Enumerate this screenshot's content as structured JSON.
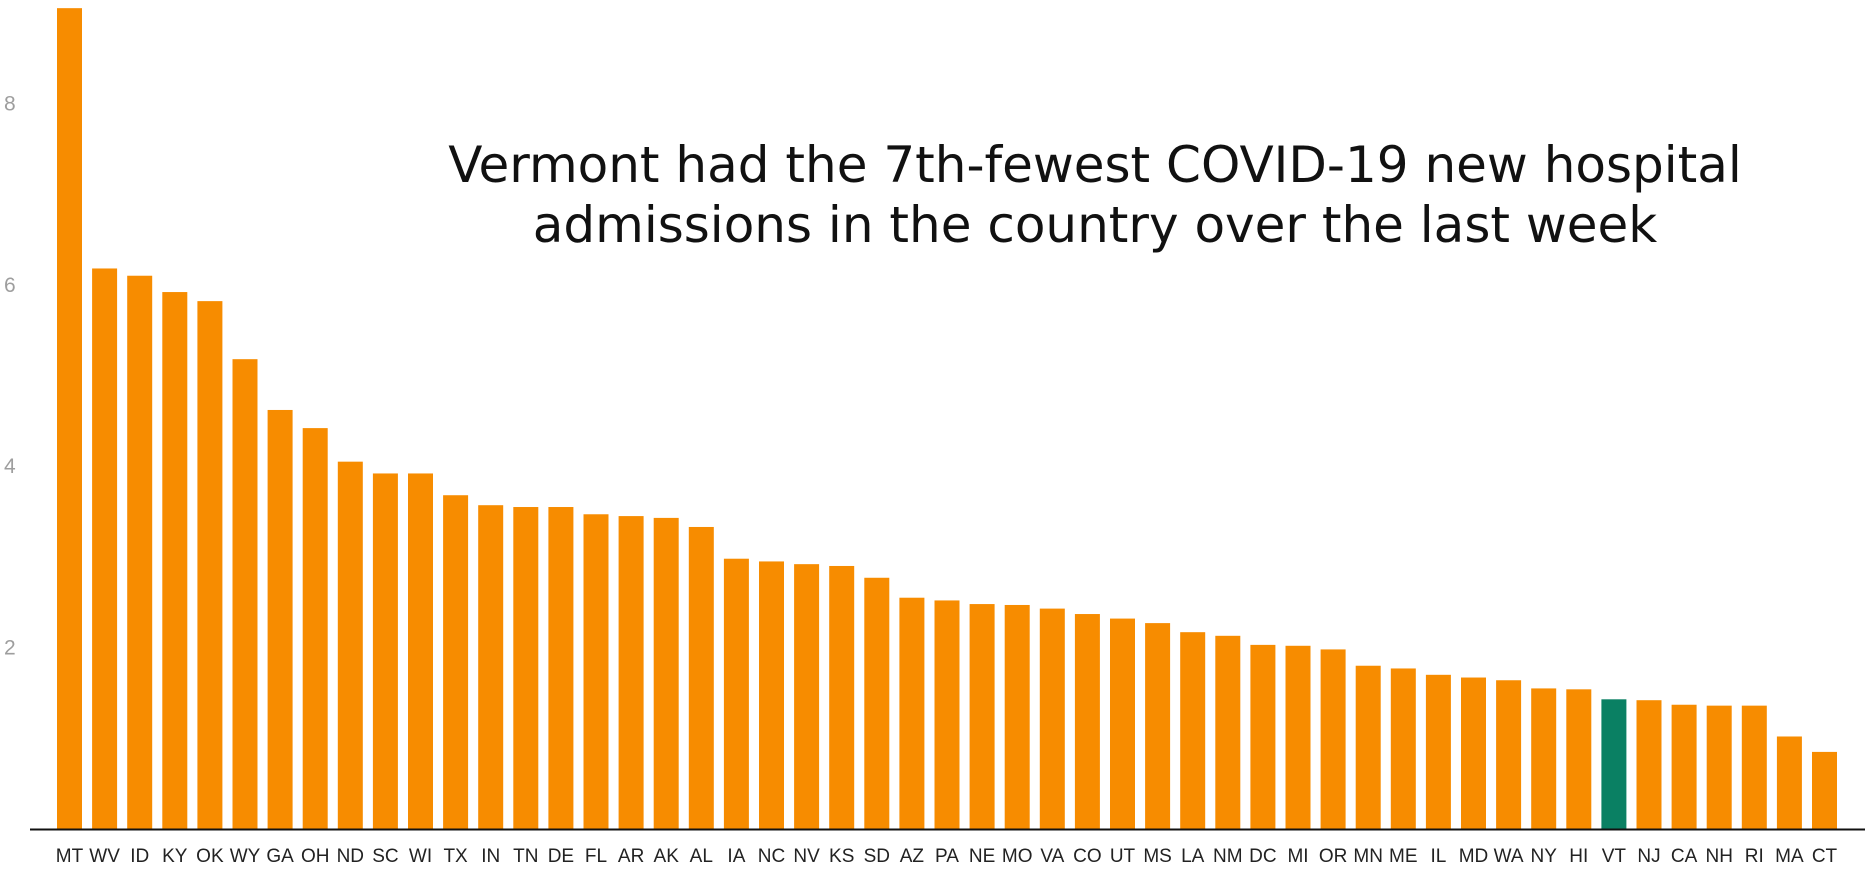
{
  "chart_data": {
    "type": "bar",
    "title": "Vermont had the 7th-fewest COVID-19 new hospital\nadmissions in the country over the last week",
    "xlabel": "",
    "ylabel": "",
    "ylim": [
      0,
      9
    ],
    "yticks": [
      2,
      4,
      6,
      8
    ],
    "grid": false,
    "legend": "none",
    "colors": {
      "default": "#f78c00",
      "highlight": "#0a8063",
      "axis": "#111111",
      "tick_label": "#9e9e9e"
    },
    "highlight": "VT",
    "categories": [
      "MT",
      "WV",
      "ID",
      "KY",
      "OK",
      "WY",
      "GA",
      "OH",
      "ND",
      "SC",
      "WI",
      "TX",
      "IN",
      "TN",
      "DE",
      "FL",
      "AR",
      "AK",
      "AL",
      "IA",
      "NC",
      "NV",
      "KS",
      "SD",
      "AZ",
      "PA",
      "NE",
      "MO",
      "VA",
      "CO",
      "UT",
      "MS",
      "LA",
      "NM",
      "DC",
      "MI",
      "OR",
      "MN",
      "ME",
      "IL",
      "MD",
      "WA",
      "NY",
      "HI",
      "VT",
      "NJ",
      "CA",
      "NH",
      "RI",
      "MA",
      "CT"
    ],
    "values": [
      9.05,
      6.18,
      6.1,
      5.92,
      5.82,
      5.18,
      4.62,
      4.42,
      4.05,
      3.92,
      3.92,
      3.68,
      3.57,
      3.55,
      3.55,
      3.47,
      3.45,
      3.43,
      3.33,
      2.98,
      2.95,
      2.92,
      2.9,
      2.77,
      2.55,
      2.52,
      2.48,
      2.47,
      2.43,
      2.37,
      2.32,
      2.27,
      2.17,
      2.13,
      2.03,
      2.02,
      1.98,
      1.8,
      1.77,
      1.7,
      1.67,
      1.64,
      1.55,
      1.54,
      1.43,
      1.42,
      1.37,
      1.36,
      1.36,
      1.02,
      0.85
    ]
  }
}
